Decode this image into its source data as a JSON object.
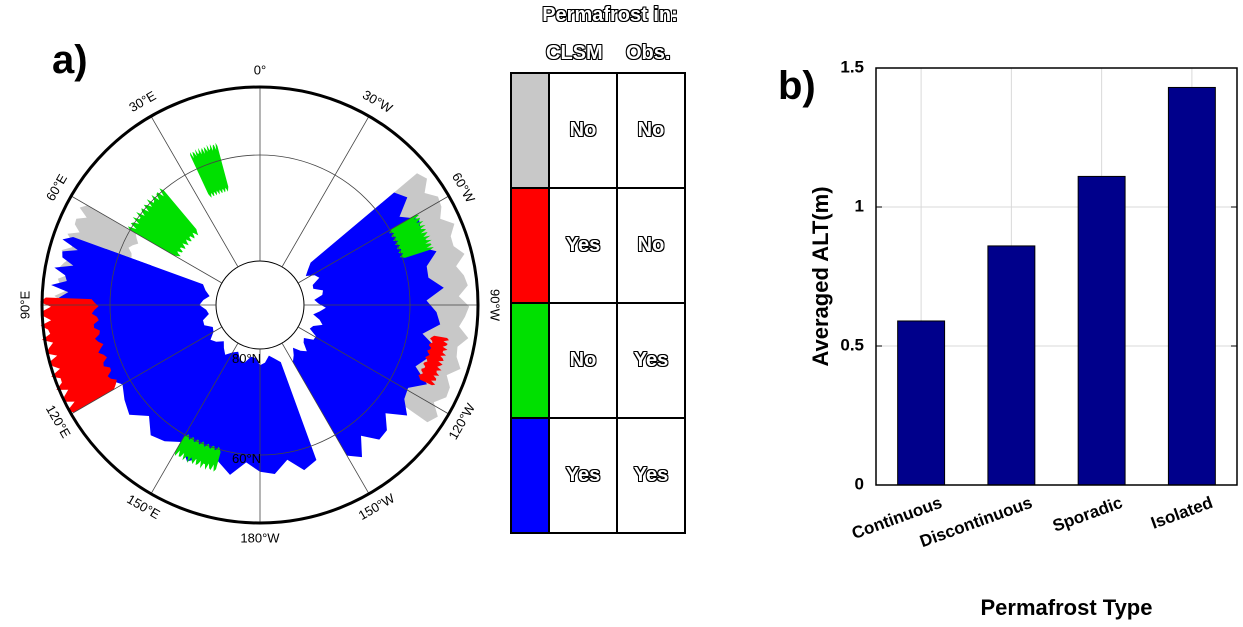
{
  "panel_a": {
    "label": "a)",
    "lon_labels": [
      {
        "text": "0°",
        "angle": 0
      },
      {
        "text": "30°W",
        "angle": 30
      },
      {
        "text": "60°W",
        "angle": 60
      },
      {
        "text": "90°W",
        "angle": 90
      },
      {
        "text": "120°W",
        "angle": 120
      },
      {
        "text": "150°W",
        "angle": 150
      },
      {
        "text": "180°W",
        "angle": 180
      },
      {
        "text": "150°E",
        "angle": 210
      },
      {
        "text": "120°E",
        "angle": 240
      },
      {
        "text": "90°E",
        "angle": 270
      },
      {
        "text": "60°E",
        "angle": 300
      },
      {
        "text": "30°E",
        "angle": 330
      }
    ],
    "lat_labels": [
      "80°N",
      "60°N"
    ],
    "colors": {
      "gray": "#c8c8c8",
      "red": "#ff0000",
      "green": "#00e000",
      "blue": "#0000ff"
    }
  },
  "legend": {
    "title": "Permafrost in:",
    "col_model": "CLSM",
    "col_obs": "Obs.",
    "rows": [
      {
        "color": "#c8c8c8",
        "model": "No",
        "obs": "No"
      },
      {
        "color": "#ff0000",
        "model": "Yes",
        "obs": "No"
      },
      {
        "color": "#00e000",
        "model": "No",
        "obs": "Yes"
      },
      {
        "color": "#0000ff",
        "model": "Yes",
        "obs": "Yes"
      }
    ]
  },
  "panel_b": {
    "label": "b)"
  },
  "chart_data": {
    "type": "bar",
    "categories": [
      "Continuous",
      "Discontinuous",
      "Sporadic",
      "Isolated"
    ],
    "values": [
      0.59,
      0.86,
      1.11,
      1.43
    ],
    "xlabel": "Permafrost Type",
    "ylabel": "Averaged ALT(m)",
    "ylim": [
      0,
      1.5
    ],
    "yticks": [
      0,
      0.5,
      1,
      1.5
    ],
    "ytick_labels": [
      "0",
      "0.5",
      "1",
      "1.5"
    ],
    "bar_color": "#00008b",
    "grid": true
  }
}
